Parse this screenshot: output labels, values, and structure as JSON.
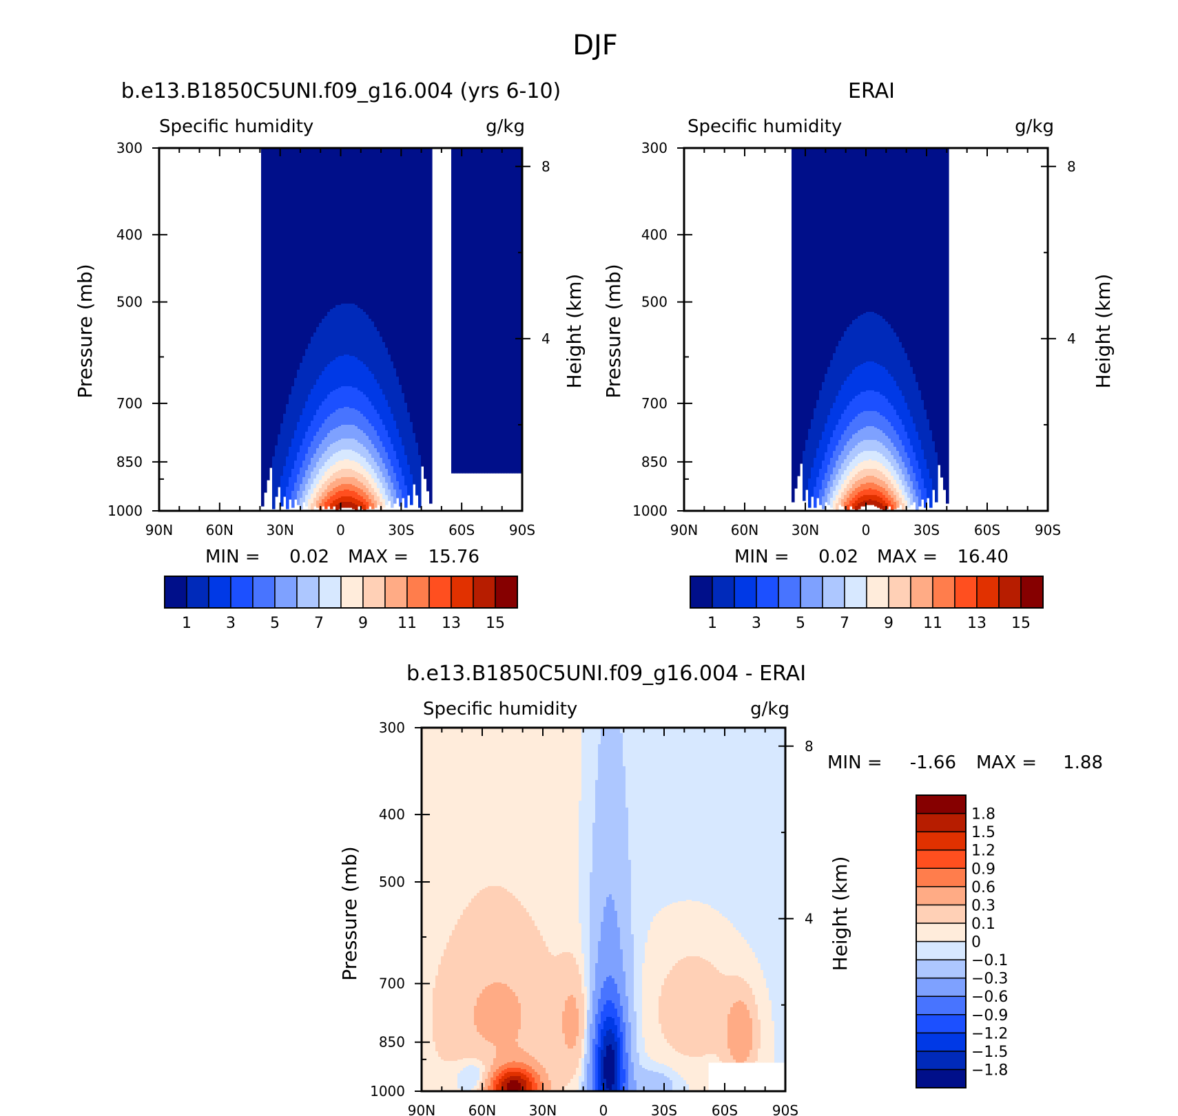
{
  "figure_title": "DJF",
  "colors": {
    "abs_scale": [
      "#000f8a",
      "#002aba",
      "#0039e6",
      "#1c50ff",
      "#4874ff",
      "#7ea1ff",
      "#adc7ff",
      "#d7e8ff",
      "#ffecdb",
      "#ffd0b6",
      "#ffab85",
      "#ff7d4c",
      "#ff4f1f",
      "#e13100",
      "#b71d00",
      "#860000"
    ],
    "diff_scale": [
      "#000f8a",
      "#002aba",
      "#0039e6",
      "#1c50ff",
      "#4874ff",
      "#7ea1ff",
      "#adc7ff",
      "#d7e8ff",
      "#ffecdb",
      "#ffd0b6",
      "#ffab85",
      "#ff7d4c",
      "#ff4f1f",
      "#e13100",
      "#b71d00",
      "#860000"
    ]
  },
  "chart_data": [
    {
      "type": "contour",
      "title": "b.e13.B1850C5UNI.f09_g16.004 (yrs 6-10)",
      "left_string": "Specific humidity",
      "right_string": "g/kg",
      "ylabel": "Pressure (mb)",
      "y2label": "Height (km)",
      "x_ticks": [
        "90N",
        "60N",
        "30N",
        "0",
        "30S",
        "60S",
        "90S"
      ],
      "y_ticks": [
        "300",
        "400",
        "500",
        "700",
        "850",
        "1000"
      ],
      "y2_ticks": [
        "8",
        "4"
      ],
      "x_range": [
        90,
        -90
      ],
      "y_range_mb": [
        1000,
        300
      ],
      "y_scale": "log",
      "min_text": "MIN =",
      "min_value": "0.02",
      "max_text": "MAX =",
      "max_value": "15.76",
      "min": 0.02,
      "max": 15.76,
      "levels": [
        1,
        2,
        3,
        4,
        5,
        6,
        7,
        8,
        9,
        10,
        11,
        12,
        13,
        14,
        15
      ],
      "colorbar_labels": [
        "1",
        "3",
        "5",
        "7",
        "9",
        "11",
        "13",
        "15"
      ],
      "colorbar_orientation": "horizontal",
      "structure": {
        "peak_lat": -3,
        "peak_value": 15.8,
        "missing_region": "below ~880 mb poleward of 55S"
      }
    },
    {
      "type": "contour",
      "title": "ERAI",
      "left_string": "Specific humidity",
      "right_string": "g/kg",
      "ylabel": "Pressure (mb)",
      "y2label": "Height (km)",
      "x_ticks": [
        "90N",
        "60N",
        "30N",
        "0",
        "30S",
        "60S",
        "90S"
      ],
      "y_ticks": [
        "300",
        "400",
        "500",
        "700",
        "850",
        "1000"
      ],
      "y2_ticks": [
        "8",
        "4"
      ],
      "x_range": [
        90,
        -90
      ],
      "y_range_mb": [
        1000,
        300
      ],
      "y_scale": "log",
      "min_text": "MIN =",
      "min_value": "0.02",
      "max_text": "MAX =",
      "max_value": "16.40",
      "min": 0.02,
      "max": 16.4,
      "levels": [
        1,
        2,
        3,
        4,
        5,
        6,
        7,
        8,
        9,
        10,
        11,
        12,
        13,
        14,
        15
      ],
      "colorbar_labels": [
        "1",
        "3",
        "5",
        "7",
        "9",
        "11",
        "13",
        "15"
      ],
      "colorbar_orientation": "horizontal",
      "structure": {
        "peak_lat": -2,
        "peak_value": 16.4
      }
    },
    {
      "type": "contour",
      "title": "b.e13.B1850C5UNI.f09_g16.004 - ERAI",
      "left_string": "Specific humidity",
      "right_string": "g/kg",
      "ylabel": "Pressure (mb)",
      "y2label": "Height (km)",
      "x_ticks": [
        "90N",
        "60N",
        "30N",
        "0",
        "30S",
        "60S",
        "90S"
      ],
      "y_ticks": [
        "300",
        "400",
        "500",
        "700",
        "850",
        "1000"
      ],
      "y2_ticks": [
        "8",
        "4"
      ],
      "x_range": [
        90,
        -90
      ],
      "y_range_mb": [
        1000,
        300
      ],
      "y_scale": "log",
      "min_text": "MIN =",
      "min_value": "-1.66",
      "max_text": "MAX =",
      "max_value": "1.88",
      "min": -1.66,
      "max": 1.88,
      "levels": [
        -1.8,
        -1.5,
        -1.2,
        -0.9,
        -0.6,
        -0.3,
        -0.1,
        0,
        0.1,
        0.3,
        0.6,
        0.9,
        1.2,
        1.5,
        1.8
      ],
      "colorbar_labels": [
        "1.8",
        "1.5",
        "1.2",
        "0.9",
        "0.6",
        "0.3",
        "0.1",
        "0",
        "-0.1",
        "-0.3",
        "-0.6",
        "-0.9",
        "-1.2",
        "-1.5",
        "-1.8"
      ],
      "colorbar_orientation": "vertical",
      "structure": {
        "max_lat": 45,
        "min_lat": -5,
        "missing_region": "below ~910 mb poleward of 52S"
      }
    }
  ]
}
